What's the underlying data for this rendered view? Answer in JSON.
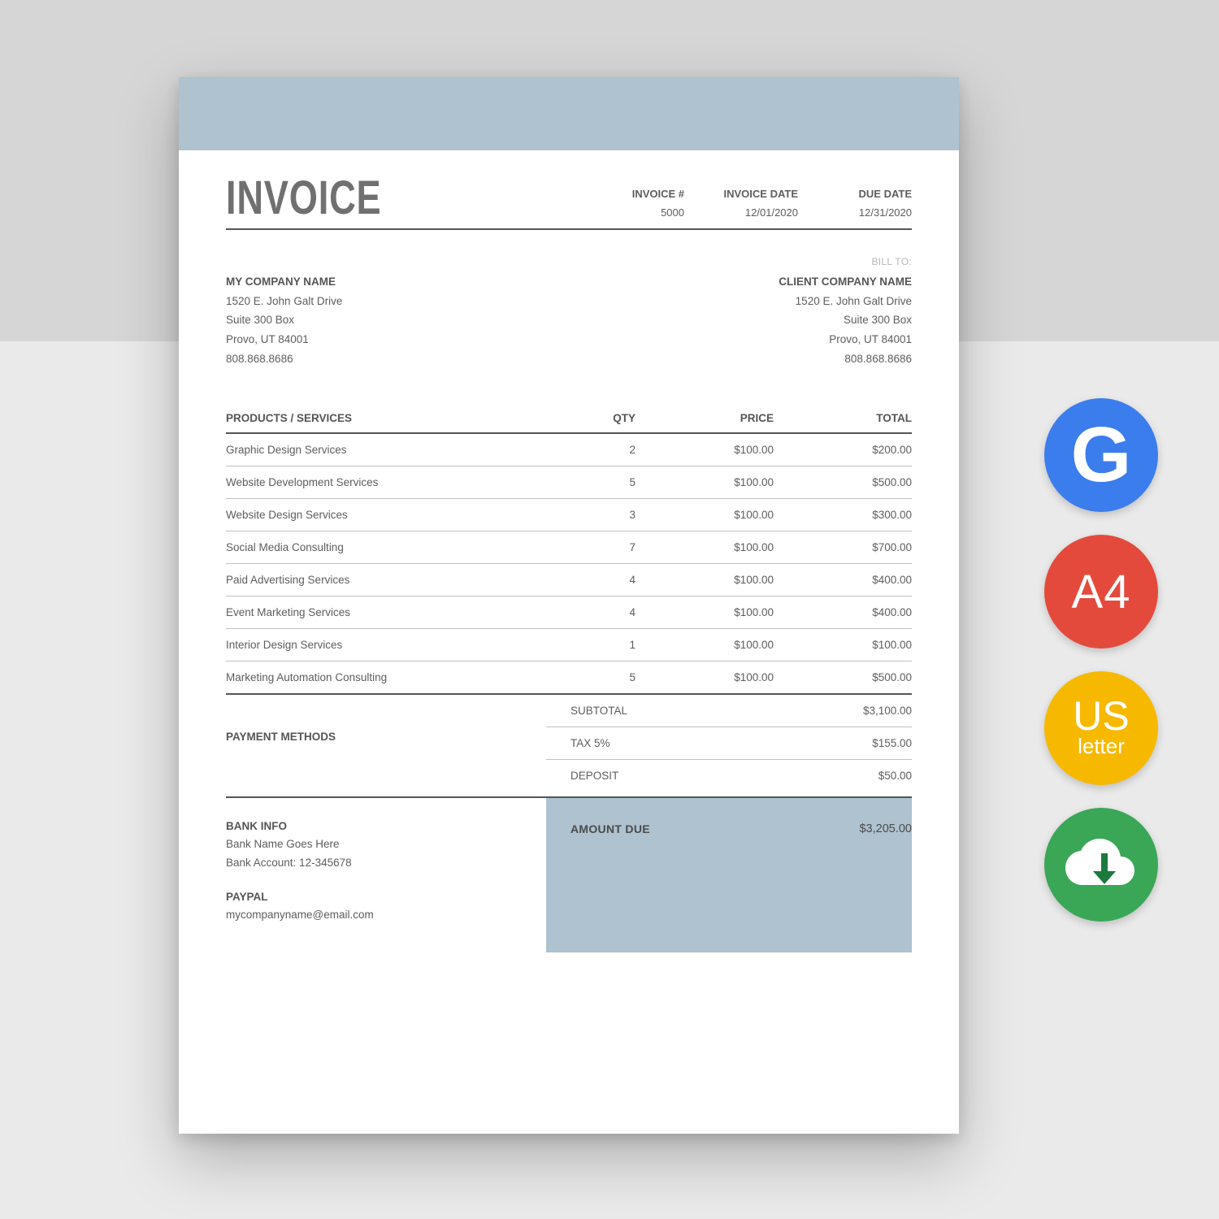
{
  "colors": {
    "bg_top": "#d6d6d6",
    "bg_bottom": "#eaeaea",
    "sheet_bg": "#ffffff",
    "accent": "#aec2cf",
    "text": "#5d5d5d",
    "rule": "#555555",
    "row_rule": "#bfbfbf",
    "billto_grey": "#b8b8b8"
  },
  "title": "INVOICE",
  "meta": {
    "col1_label": "INVOICE #",
    "col1_value": "5000",
    "col2_label": "INVOICE DATE",
    "col2_value": "12/01/2020",
    "col3_label": "DUE DATE",
    "col3_value": "12/31/2020"
  },
  "billto_label": "BILL TO:",
  "from": {
    "name": "MY COMPANY NAME",
    "line1": "1520 E. John Galt Drive",
    "line2": "Suite 300 Box",
    "line3": "Provo, UT 84001",
    "line4": "808.868.8686"
  },
  "to": {
    "name": "CLIENT COMPANY NAME",
    "line1": "1520 E. John Galt Drive",
    "line2": "Suite 300 Box",
    "line3": "Provo, UT 84001",
    "line4": "808.868.8686"
  },
  "table": {
    "h_product": "PRODUCTS / SERVICES",
    "h_qty": "QTY",
    "h_price": "PRICE",
    "h_total": "TOTAL",
    "rows": [
      {
        "product": "Graphic Design Services",
        "qty": "2",
        "price": "$100.00",
        "total": "$200.00"
      },
      {
        "product": "Website Development Services",
        "qty": "5",
        "price": "$100.00",
        "total": "$500.00"
      },
      {
        "product": "Website Design Services",
        "qty": "3",
        "price": "$100.00",
        "total": "$300.00"
      },
      {
        "product": "Social Media Consulting",
        "qty": "7",
        "price": "$100.00",
        "total": "$700.00"
      },
      {
        "product": "Paid Advertising Services",
        "qty": "4",
        "price": "$100.00",
        "total": "$400.00"
      },
      {
        "product": "Event Marketing Services",
        "qty": "4",
        "price": "$100.00",
        "total": "$400.00"
      },
      {
        "product": "Interior Design Services",
        "qty": "1",
        "price": "$100.00",
        "total": "$100.00"
      },
      {
        "product": "Marketing Automation Consulting",
        "qty": "5",
        "price": "$100.00",
        "total": "$500.00"
      }
    ]
  },
  "totals": {
    "subtotal_label": "SUBTOTAL",
    "subtotal": "$3,100.00",
    "tax_label": "TAX 5%",
    "tax": "$155.00",
    "deposit_label": "DEPOSIT",
    "deposit": "$50.00",
    "due_label": "AMOUNT DUE",
    "due": "$3,205.00"
  },
  "payment_methods_label": "PAYMENT METHODS",
  "bank": {
    "heading": "BANK INFO",
    "line1": "Bank Name Goes Here",
    "line2": "Bank Account: 12-345678"
  },
  "paypal": {
    "heading": "PAYPAL",
    "line1": "mycompanyname@email.com"
  },
  "badges": {
    "google": {
      "letter": "G",
      "bg": "#3b7ded"
    },
    "a4": {
      "text": "A4",
      "bg": "#e44a3c"
    },
    "us": {
      "line1": "US",
      "line2": "letter",
      "bg": "#f6b900"
    },
    "dl": {
      "bg": "#3aa757",
      "arrow": "#1c7a3c"
    }
  }
}
